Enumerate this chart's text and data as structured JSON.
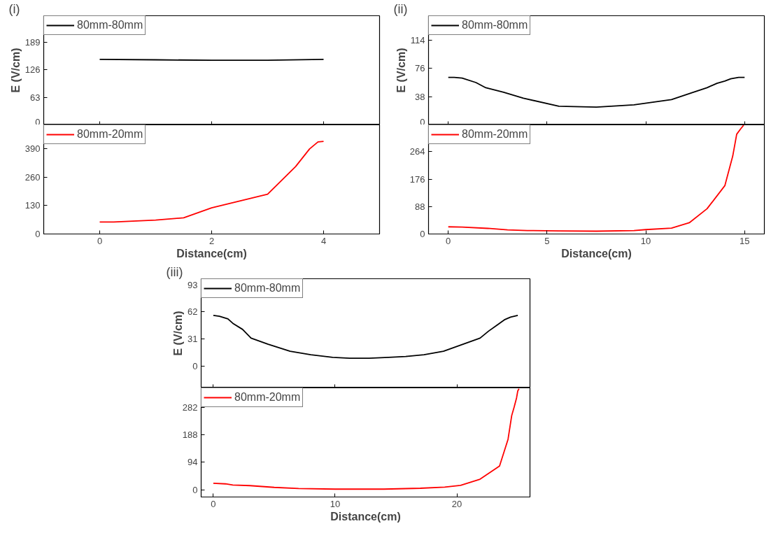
{
  "chart_data": [
    {
      "type": "line",
      "annotations": [
        "(i)"
      ],
      "ylabel": "E (V/cm)",
      "tick_labels": "y",
      "legend": "top left",
      "grid": false,
      "x": [
        0,
        1,
        2,
        3,
        4
      ],
      "xlim": [
        -1,
        5
      ],
      "xticks": [
        0,
        2,
        4
      ],
      "ylim": [
        0,
        250
      ],
      "yticks": [
        0,
        63,
        126,
        189
      ],
      "series": [
        {
          "name": "80mm-80mm",
          "color": "#000000",
          "values": [
            150,
            149,
            148,
            148,
            150
          ]
        }
      ]
    },
    {
      "type": "line",
      "xlabel": "Distance(cm)",
      "legend": "top left",
      "grid": false,
      "x": [
        0,
        0.25,
        1,
        1.5,
        2,
        3,
        3.5,
        3.75,
        3.9,
        4
      ],
      "xlim": [
        -1,
        5
      ],
      "xticks": [
        0,
        2,
        4
      ],
      "ylim": [
        0,
        500
      ],
      "yticks": [
        0,
        130,
        260,
        390
      ],
      "series": [
        {
          "name": "80mm-20mm",
          "color": "#ff0000",
          "values": [
            55,
            55,
            64,
            74,
            120,
            182,
            309,
            390,
            422,
            424
          ]
        }
      ]
    },
    {
      "type": "line",
      "annotations": [
        "(ii)"
      ],
      "ylabel": "E (V/cm)",
      "tick_labels": "y",
      "legend": "top left",
      "grid": false,
      "x": [
        0,
        0.3,
        0.7,
        1.4,
        1.9,
        2.8,
        3.8,
        5.6,
        7.5,
        9.4,
        11.3,
        12.3,
        13.1,
        13.6,
        14.0,
        14.3,
        14.7,
        15
      ],
      "xlim": [
        -1,
        16
      ],
      "xticks": [
        0,
        5,
        10,
        15
      ],
      "ylim": [
        0,
        147
      ],
      "yticks": [
        0,
        38,
        76,
        114
      ],
      "series": [
        {
          "name": "80mm-80mm",
          "color": "#000000",
          "values": [
            64,
            64,
            63,
            57,
            50,
            44,
            36,
            25,
            24,
            27,
            34,
            43,
            50,
            56,
            59,
            62,
            64,
            64
          ]
        }
      ]
    },
    {
      "type": "line",
      "xlabel": "Distance(cm)",
      "legend": "top left",
      "grid": false,
      "x": [
        0,
        0.7,
        2,
        3,
        4,
        5.6,
        7.5,
        9.4,
        10,
        11.3,
        12.2,
        13.1,
        14,
        14.4,
        14.6,
        14.8,
        14.95
      ],
      "xlim": [
        -1,
        16
      ],
      "xticks": [
        0,
        5,
        10,
        15
      ],
      "ylim": [
        0,
        350
      ],
      "yticks": [
        0,
        88,
        176,
        264
      ],
      "series": [
        {
          "name": "80mm-20mm",
          "color": "#ff0000",
          "values": [
            23,
            22,
            18,
            13,
            11,
            10,
            9,
            11,
            14,
            19,
            36,
            81,
            155,
            250,
            320,
            337,
            349
          ]
        }
      ]
    },
    {
      "type": "line",
      "annotations": [
        "(iii)"
      ],
      "ylabel": "E (V/cm)",
      "tick_labels": "y",
      "legend": "top left",
      "grid": false,
      "x": [
        0,
        0.5,
        1.2,
        1.6,
        2.4,
        3.1,
        4.5,
        6.3,
        8,
        9.8,
        11.2,
        12.8,
        14.4,
        15.8,
        17.3,
        18.9,
        20.3,
        21.9,
        22.6,
        23.3,
        23.9,
        24.4,
        24.7,
        25
      ],
      "xlim": [
        -1,
        26
      ],
      "xticks": [
        0,
        10,
        20
      ],
      "ylim": [
        -25,
        100
      ],
      "yticks": [
        0,
        31,
        62,
        93
      ],
      "series": [
        {
          "name": "80mm-80mm",
          "color": "#000000",
          "values": [
            58,
            57,
            54,
            49,
            42,
            32,
            25,
            17,
            13,
            10,
            9,
            9,
            10,
            11,
            13,
            17,
            24,
            32,
            40,
            47,
            53,
            56,
            57,
            58
          ]
        }
      ]
    },
    {
      "type": "line",
      "xlabel": "Distance(cm)",
      "legend": "top left",
      "grid": false,
      "x": [
        0,
        1,
        1.6,
        3,
        5,
        7,
        10,
        14,
        17,
        19,
        20.3,
        21.9,
        23.5,
        24.2,
        24.5,
        24.7,
        24.9,
        25,
        25.1
      ],
      "xlim": [
        -1,
        26
      ],
      "xticks": [
        0,
        10,
        20
      ],
      "ylim": [
        -25,
        349
      ],
      "yticks": [
        0,
        94,
        188,
        282
      ],
      "series": [
        {
          "name": "80mm-20mm",
          "color": "#ff0000",
          "values": [
            22,
            20,
            16,
            14,
            8,
            4,
            2,
            2,
            5,
            9,
            15,
            36,
            81,
            173,
            254,
            283,
            315,
            339,
            346
          ]
        }
      ]
    }
  ]
}
